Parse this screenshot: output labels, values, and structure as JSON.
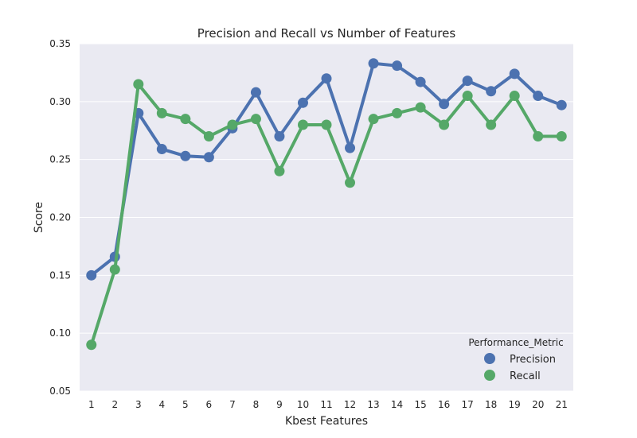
{
  "chart_data": {
    "type": "line",
    "title": "Precision and Recall vs Number of Features",
    "xlabel": "Kbest Features",
    "ylabel": "Score",
    "categories": [
      "1",
      "2",
      "3",
      "4",
      "5",
      "6",
      "7",
      "8",
      "9",
      "10",
      "11",
      "12",
      "13",
      "14",
      "15",
      "16",
      "17",
      "18",
      "19",
      "20",
      "21"
    ],
    "ylim": [
      0.05,
      0.35
    ],
    "yticks": [
      "0.05",
      "0.10",
      "0.15",
      "0.20",
      "0.25",
      "0.30",
      "0.35"
    ],
    "grid": true,
    "legend": {
      "title": "Performance_Metric",
      "position": "bottom-right"
    },
    "series": [
      {
        "name": "Precision",
        "color": "#4c72b0",
        "values": [
          0.15,
          0.166,
          0.29,
          0.259,
          0.253,
          0.252,
          0.277,
          0.308,
          0.27,
          0.299,
          0.32,
          0.26,
          0.333,
          0.331,
          0.317,
          0.298,
          0.318,
          0.309,
          0.324,
          0.305,
          0.297
        ]
      },
      {
        "name": "Recall",
        "color": "#55a868",
        "values": [
          0.09,
          0.155,
          0.315,
          0.29,
          0.285,
          0.27,
          0.28,
          0.285,
          0.24,
          0.28,
          0.28,
          0.23,
          0.285,
          0.29,
          0.295,
          0.28,
          0.305,
          0.28,
          0.305,
          0.27,
          0.27
        ]
      }
    ]
  },
  "style": {
    "plot_background": "#eaeaf2",
    "grid_color": "#ffffff"
  }
}
